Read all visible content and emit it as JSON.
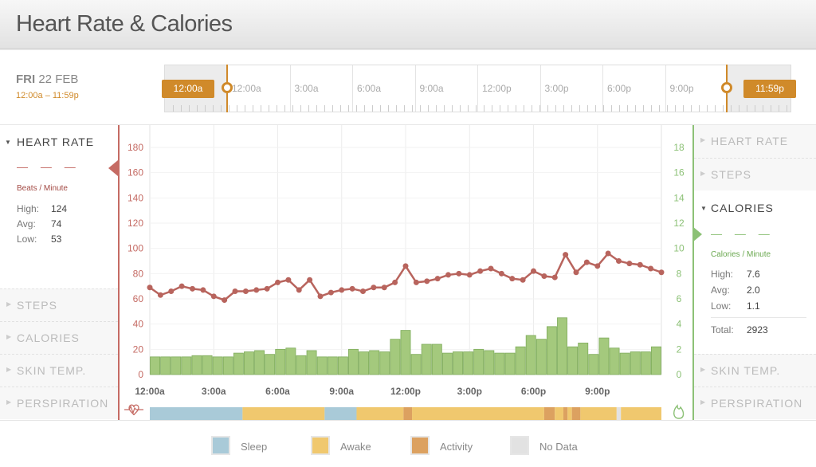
{
  "header": {
    "title": "Heart Rate & Calories"
  },
  "date": {
    "day": "FRI",
    "date": "22 FEB",
    "range": "12:00a – 11:59p"
  },
  "timeline": {
    "labels": [
      "12:00a",
      "3:00a",
      "6:00a",
      "9:00a",
      "12:00p",
      "3:00p",
      "6:00p",
      "9:00p"
    ],
    "start_tag": "12:00a",
    "end_tag": "11:59p"
  },
  "left_panel": {
    "active": {
      "title": "HEART RATE",
      "dashes": "— — —",
      "unit": "Beats / Minute",
      "stats": [
        {
          "label": "High:",
          "value": "124"
        },
        {
          "label": "Avg:",
          "value": "74"
        },
        {
          "label": "Low:",
          "value": "53"
        }
      ]
    },
    "items": [
      "STEPS",
      "CALORIES",
      "SKIN TEMP.",
      "PERSPIRATION"
    ]
  },
  "right_panel": {
    "items_top": [
      "HEART RATE",
      "STEPS"
    ],
    "active": {
      "title": "CALORIES",
      "dashes": "— — —",
      "unit": "Calories / Minute",
      "stats": [
        {
          "label": "High:",
          "value": "7.6"
        },
        {
          "label": "Avg:",
          "value": "2.0"
        },
        {
          "label": "Low:",
          "value": "1.1"
        }
      ],
      "total_label": "Total:",
      "total_value": "2923"
    },
    "items_bottom": [
      "SKIN TEMP.",
      "PERSPIRATION"
    ]
  },
  "legend": [
    {
      "label": "Sleep",
      "color": "#a9cad8"
    },
    {
      "label": "Awake",
      "color": "#f0c86e"
    },
    {
      "label": "Activity",
      "color": "#dca160"
    },
    {
      "label": "No Data",
      "color": "#e2e2e2"
    }
  ],
  "colors": {
    "heart": "#c56b64",
    "calories": "#8cc176",
    "accent": "#d08a2a"
  },
  "chart_data": {
    "type": "line",
    "x_labels": [
      "12:00a",
      "3:00a",
      "6:00a",
      "9:00a",
      "12:00p",
      "3:00p",
      "6:00p",
      "9:00p"
    ],
    "x_range_hours": [
      0,
      24
    ],
    "left_axis": {
      "ticks": [
        0,
        20,
        40,
        60,
        80,
        100,
        120,
        140,
        160,
        180
      ],
      "range": [
        0,
        180
      ]
    },
    "right_axis": {
      "ticks": [
        0,
        2,
        4,
        6,
        8,
        10,
        12,
        14,
        16,
        18
      ],
      "range": [
        0,
        18
      ]
    },
    "heart_rate": [
      69,
      63,
      66,
      70,
      68,
      67,
      62,
      59,
      66,
      66,
      67,
      68,
      73,
      75,
      67,
      75,
      62,
      65,
      67,
      68,
      66,
      69,
      69,
      73,
      86,
      73,
      74,
      76,
      79,
      80,
      79,
      82,
      84,
      80,
      76,
      75,
      82,
      78,
      77,
      95,
      81,
      89,
      86,
      96,
      90,
      88,
      87,
      84,
      81
    ],
    "calories": [
      1.4,
      1.4,
      1.4,
      1.4,
      1.5,
      1.5,
      1.4,
      1.4,
      1.7,
      1.8,
      1.9,
      1.6,
      2.0,
      2.1,
      1.5,
      1.9,
      1.4,
      1.4,
      1.4,
      2.0,
      1.8,
      1.9,
      1.8,
      2.8,
      3.5,
      1.6,
      2.4,
      2.4,
      1.7,
      1.8,
      1.8,
      2.0,
      1.9,
      1.7,
      1.7,
      2.2,
      3.1,
      2.8,
      3.8,
      4.5,
      2.2,
      2.5,
      1.6,
      2.9,
      2.1,
      1.7,
      1.8,
      1.8,
      2.2
    ],
    "activity_states": [
      {
        "state": "Sleep",
        "from": 0,
        "to": 4.35
      },
      {
        "state": "Awake",
        "from": 4.35,
        "to": 8.2
      },
      {
        "state": "Sleep",
        "from": 8.2,
        "to": 9.7
      },
      {
        "state": "Awake",
        "from": 9.7,
        "to": 11.9
      },
      {
        "state": "Activity",
        "from": 11.9,
        "to": 12.3
      },
      {
        "state": "Awake",
        "from": 12.3,
        "to": 18.5
      },
      {
        "state": "Activity",
        "from": 18.5,
        "to": 19.0
      },
      {
        "state": "Awake",
        "from": 19.0,
        "to": 19.4
      },
      {
        "state": "Activity",
        "from": 19.4,
        "to": 19.6
      },
      {
        "state": "Awake",
        "from": 19.6,
        "to": 19.8
      },
      {
        "state": "Activity",
        "from": 19.8,
        "to": 20.2
      },
      {
        "state": "Awake",
        "from": 20.2,
        "to": 21.9
      },
      {
        "state": "No Data",
        "from": 21.9,
        "to": 22.1
      },
      {
        "state": "Awake",
        "from": 22.1,
        "to": 24
      }
    ]
  }
}
